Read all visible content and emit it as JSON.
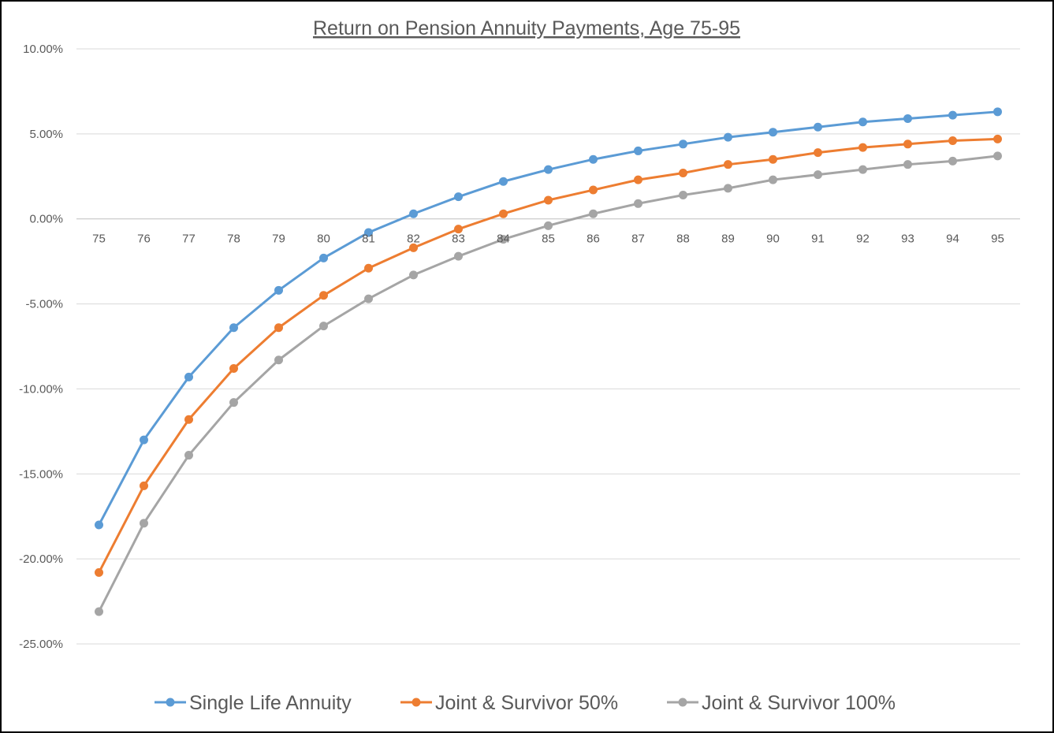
{
  "chart_data": {
    "type": "line",
    "title": "Return on Pension Annuity Payments, Age 75-95",
    "xlabel": "",
    "ylabel": "",
    "x": [
      "75",
      "76",
      "77",
      "78",
      "79",
      "80",
      "81",
      "82",
      "83",
      "84",
      "85",
      "86",
      "87",
      "88",
      "89",
      "90",
      "91",
      "92",
      "93",
      "94",
      "95"
    ],
    "y_ticks": [
      "10.00%",
      "5.00%",
      "0.00%",
      "-5.00%",
      "-10.00%",
      "-15.00%",
      "-20.00%",
      "-25.00%"
    ],
    "ylim": [
      -0.25,
      0.1
    ],
    "y_format": "percent",
    "grid": true,
    "legend_position": "bottom",
    "series": [
      {
        "name": "Single Life Annuity",
        "color": "#5B9BD5",
        "values": [
          -0.18,
          -0.13,
          -0.093,
          -0.064,
          -0.042,
          -0.023,
          -0.008,
          0.003,
          0.013,
          0.022,
          0.029,
          0.035,
          0.04,
          0.044,
          0.048,
          0.051,
          0.054,
          0.057,
          0.059,
          0.061,
          0.063
        ]
      },
      {
        "name": "Joint & Survivor 50%",
        "color": "#ED7D31",
        "values": [
          -0.208,
          -0.157,
          -0.118,
          -0.088,
          -0.064,
          -0.045,
          -0.029,
          -0.017,
          -0.006,
          0.003,
          0.011,
          0.017,
          0.023,
          0.027,
          0.032,
          0.035,
          0.039,
          0.042,
          0.044,
          0.046,
          0.047
        ]
      },
      {
        "name": "Joint & Survivor 100%",
        "color": "#A5A5A5",
        "values": [
          -0.231,
          -0.179,
          -0.139,
          -0.108,
          -0.083,
          -0.063,
          -0.047,
          -0.033,
          -0.022,
          -0.012,
          -0.004,
          0.003,
          0.009,
          0.014,
          0.018,
          0.023,
          0.026,
          0.029,
          0.032,
          0.034,
          0.037
        ]
      }
    ]
  }
}
